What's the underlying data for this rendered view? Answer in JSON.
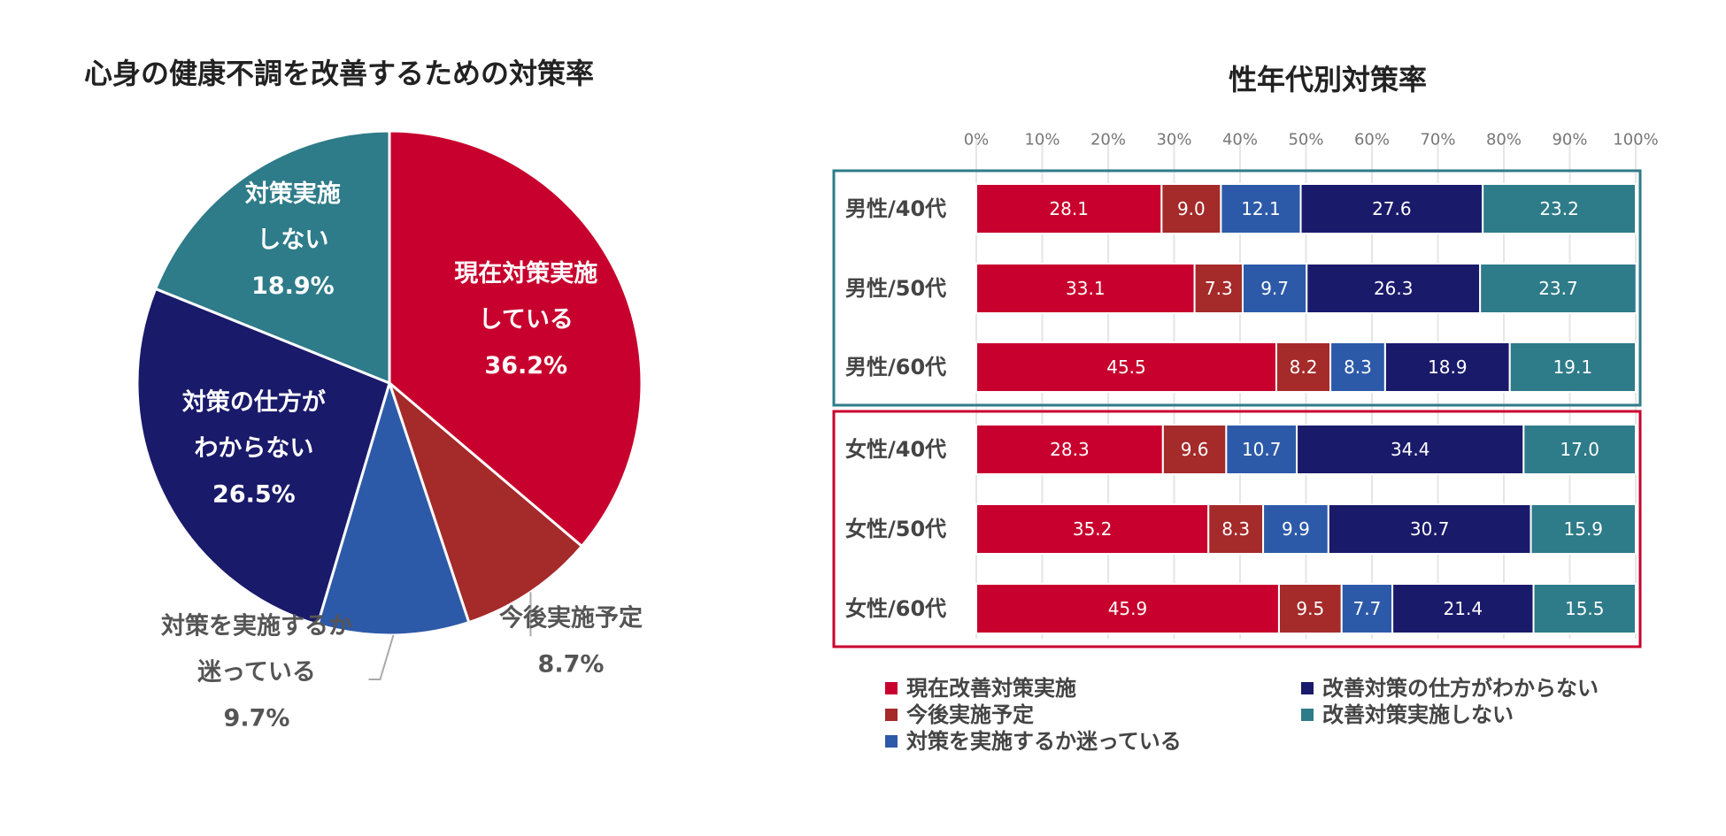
{
  "chart_data": [
    {
      "type": "pie",
      "title": "心身の健康不調を改善するための対策率",
      "slices": [
        {
          "name": "現在対策実施している",
          "lines": [
            "現在対策実施",
            "している"
          ],
          "pct_label": "36.2%",
          "value": 36.2,
          "color": "#c8002d"
        },
        {
          "name": "今後実施予定",
          "lines": [
            "今後実施予定"
          ],
          "pct_label": "8.7%",
          "value": 8.7,
          "color": "#a52a2a"
        },
        {
          "name": "対策を実施するか迷っている",
          "lines": [
            "対策を実施するか",
            "迷っている"
          ],
          "pct_label": "9.7%",
          "value": 9.7,
          "color": "#2d5aa8"
        },
        {
          "name": "対策の仕方がわからない",
          "lines": [
            "対策の仕方が",
            "わからない"
          ],
          "pct_label": "26.5%",
          "value": 26.5,
          "color": "#1a1a6b"
        },
        {
          "name": "対策実施しない",
          "lines": [
            "対策実施",
            "しない"
          ],
          "pct_label": "18.9%",
          "value": 18.9,
          "color": "#2e7b89"
        }
      ]
    },
    {
      "type": "bar",
      "orientation": "horizontal",
      "stacked": true,
      "title": "性年代別対策率",
      "xlim": [
        0,
        100
      ],
      "ticks": [
        "0%",
        "10%",
        "20%",
        "30%",
        "40%",
        "50%",
        "60%",
        "70%",
        "80%",
        "90%",
        "100%"
      ],
      "categories": [
        "男性/40代",
        "男性/50代",
        "男性/60代",
        "女性/40代",
        "女性/50代",
        "女性/60代"
      ],
      "groups": [
        {
          "name": "男性",
          "rows": [
            0,
            1,
            2
          ],
          "color": "#2e7b89"
        },
        {
          "name": "女性",
          "rows": [
            3,
            4,
            5
          ],
          "color": "#c8002d"
        }
      ],
      "series": [
        {
          "name": "現在改善対策実施",
          "color": "#c8002d",
          "values": [
            28.1,
            33.1,
            45.5,
            28.3,
            35.2,
            45.9
          ],
          "labels": [
            "28.1",
            "33.1",
            "45.5",
            "28.3",
            "35.2",
            "45.9"
          ]
        },
        {
          "name": "今後実施予定",
          "color": "#a52a2a",
          "values": [
            9.0,
            7.3,
            8.2,
            9.6,
            8.3,
            9.5
          ],
          "labels": [
            "9.0",
            "7.3",
            "8.2",
            "9.6",
            "8.3",
            "9.5"
          ]
        },
        {
          "name": "対策を実施するか迷っている",
          "color": "#2d5aa8",
          "values": [
            12.1,
            9.7,
            8.3,
            10.7,
            9.9,
            7.7
          ],
          "labels": [
            "12.1",
            "9.7",
            "8.3",
            "10.7",
            "9.9",
            "7.7"
          ]
        },
        {
          "name": "改善対策の仕方がわからない",
          "color": "#1a1a6b",
          "values": [
            27.6,
            26.3,
            18.9,
            34.4,
            30.7,
            21.4
          ],
          "labels": [
            "27.6",
            "26.3",
            "18.9",
            "34.4",
            "30.7",
            "21.4"
          ]
        },
        {
          "name": "改善対策実施しない",
          "color": "#2e7b89",
          "values": [
            23.2,
            23.7,
            19.1,
            17.0,
            15.9,
            15.5
          ],
          "labels": [
            "23.2",
            "23.7",
            "19.1",
            "17.0",
            "15.9",
            "15.5"
          ]
        }
      ]
    }
  ]
}
